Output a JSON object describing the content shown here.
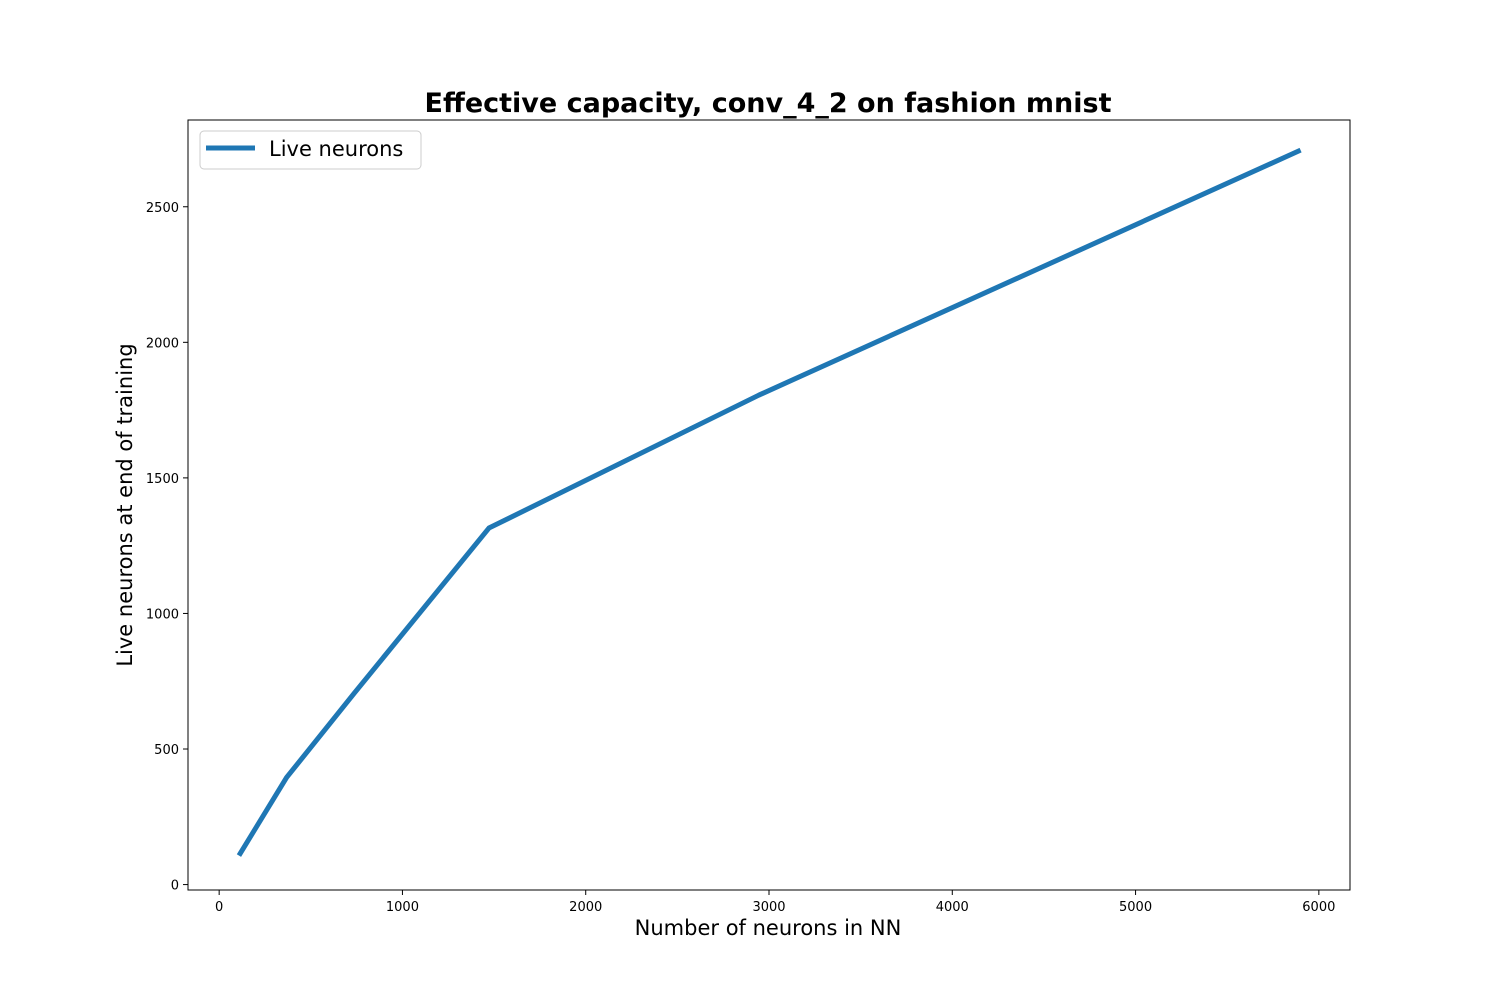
{
  "chart_data": {
    "type": "line",
    "title": "Effective capacity, conv_4_2 on fashion mnist",
    "xlabel": "Number of neurons in NN",
    "ylabel": "Live neurons at end of training",
    "xlim": [
      -170,
      6170
    ],
    "ylim": [
      -20,
      2820
    ],
    "xticks": [
      0,
      1000,
      2000,
      3000,
      4000,
      5000,
      6000
    ],
    "yticks": [
      0,
      500,
      1000,
      1500,
      2000,
      2500
    ],
    "grid": false,
    "legend_position": "upper-left",
    "series": [
      {
        "name": "Live neurons",
        "color": "#1f77b4",
        "x": [
          115,
          368,
          736,
          1472,
          2944,
          5888
        ],
        "y": [
          115,
          395,
          705,
          1315,
          1805,
          2705
        ]
      }
    ]
  }
}
